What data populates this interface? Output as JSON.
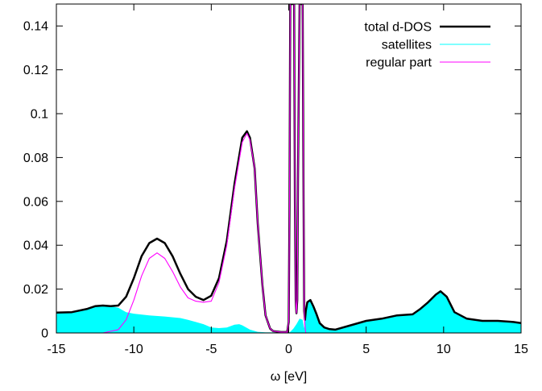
{
  "chart_data": {
    "type": "area",
    "title": "",
    "xlabel": "ω [eV]",
    "ylabel": "",
    "xlim": [
      -15,
      15
    ],
    "ylim": [
      0,
      0.15
    ],
    "xticks": [
      -15,
      -10,
      -5,
      0,
      5,
      10,
      15
    ],
    "xtick_labels": [
      "-15",
      "-10",
      "-5",
      "0",
      "5",
      "10",
      "15"
    ],
    "yticks": [
      0,
      0.02,
      0.04,
      0.06,
      0.08,
      0.1,
      0.12,
      0.14
    ],
    "ytick_labels": [
      "0",
      "0.02",
      "0.04",
      "0.06",
      "0.08",
      "0.1",
      "0.12",
      "0.14"
    ],
    "grid": false,
    "legend_position": "top-right",
    "series": [
      {
        "name": "satellites",
        "color": "#00ffff",
        "style": "filled-area",
        "x": [
          -15,
          -14,
          -13,
          -12.5,
          -12,
          -11.5,
          -11,
          -10.5,
          -10,
          -9,
          -8,
          -7,
          -6.5,
          -6,
          -5.5,
          -5,
          -4.5,
          -4,
          -3.5,
          -3.2,
          -3,
          -2.5,
          -2,
          -1.5,
          -1,
          -0.5,
          0,
          0.1,
          0.3,
          0.5,
          0.7,
          0.9,
          1.0,
          1.1,
          1.2,
          1.4,
          1.6,
          1.8,
          2,
          2.3,
          2.6,
          3,
          4,
          5,
          6,
          7,
          8,
          8.5,
          9,
          9.5,
          9.8,
          10.2,
          10.7,
          11.5,
          12.5,
          13.5,
          14.5,
          15
        ],
        "y": [
          0.0093,
          0.0095,
          0.011,
          0.0122,
          0.0125,
          0.0122,
          0.0115,
          0.0095,
          0.0088,
          0.008,
          0.0075,
          0.0068,
          0.006,
          0.005,
          0.004,
          0.0025,
          0.0022,
          0.0025,
          0.0038,
          0.004,
          0.0035,
          0.0015,
          0.0005,
          0.0003,
          0.0003,
          0.0002,
          0.0002,
          0.0005,
          0.002,
          0.004,
          0.0065,
          0.006,
          0.002,
          0.01,
          0.014,
          0.015,
          0.012,
          0.0085,
          0.0045,
          0.0025,
          0.0018,
          0.0015,
          0.0035,
          0.0055,
          0.0065,
          0.008,
          0.0085,
          0.011,
          0.014,
          0.0175,
          0.019,
          0.0165,
          0.0095,
          0.0065,
          0.0055,
          0.0055,
          0.005,
          0.0045
        ]
      },
      {
        "name": "total d-DOS",
        "color": "#000000",
        "style": "thick-line",
        "x": [
          -15,
          -14,
          -13,
          -12.5,
          -12,
          -11.5,
          -11,
          -10.5,
          -10,
          -9.5,
          -9,
          -8.5,
          -8,
          -7.5,
          -7,
          -6.5,
          -6,
          -5.5,
          -5,
          -4.5,
          -4,
          -3.5,
          -3,
          -2.7,
          -2.5,
          -2.2,
          -2,
          -1.7,
          -1.5,
          -1.2,
          -1,
          -0.5,
          -0.1,
          0,
          0.05,
          0.1,
          0.15,
          0.25,
          0.35,
          0.4,
          0.45,
          0.5,
          0.55,
          0.6,
          0.7,
          0.8,
          0.9,
          0.95,
          1.0,
          1.05,
          1.1,
          1.2,
          1.4,
          1.6,
          1.8,
          2,
          2.3,
          2.6,
          3,
          4,
          5,
          6,
          7,
          8,
          8.5,
          9,
          9.5,
          9.8,
          10.2,
          10.7,
          11.5,
          12.5,
          13.5,
          14.5,
          15
        ],
        "y": [
          0.0093,
          0.0095,
          0.011,
          0.0122,
          0.0125,
          0.0122,
          0.0125,
          0.0165,
          0.025,
          0.035,
          0.041,
          0.043,
          0.041,
          0.035,
          0.027,
          0.02,
          0.0165,
          0.015,
          0.017,
          0.025,
          0.042,
          0.068,
          0.089,
          0.092,
          0.089,
          0.075,
          0.05,
          0.022,
          0.008,
          0.002,
          0.0008,
          0.0004,
          0.0004,
          0.005,
          0.06,
          0.15,
          0.15,
          0.15,
          0.15,
          0.06,
          0.015,
          0.009,
          0.015,
          0.07,
          0.15,
          0.15,
          0.15,
          0.07,
          0.01,
          0.006,
          0.01,
          0.014,
          0.015,
          0.012,
          0.0085,
          0.0045,
          0.0025,
          0.0018,
          0.0015,
          0.0035,
          0.0055,
          0.0065,
          0.008,
          0.0085,
          0.011,
          0.014,
          0.0175,
          0.019,
          0.0165,
          0.0095,
          0.0065,
          0.0055,
          0.0055,
          0.005,
          0.0045
        ]
      },
      {
        "name": "regular part",
        "color": "#ff00ff",
        "style": "thin-line",
        "x": [
          -12,
          -11,
          -10.5,
          -10,
          -9.5,
          -9,
          -8.5,
          -8,
          -7.5,
          -7,
          -6.5,
          -6,
          -5.5,
          -5,
          -4.5,
          -4,
          -3.5,
          -3,
          -2.7,
          -2.5,
          -2.2,
          -2,
          -1.7,
          -1.5,
          -1.2,
          -1,
          -0.5,
          -0.1,
          0,
          0.05,
          0.1,
          0.15,
          0.25,
          0.35,
          0.4,
          0.45,
          0.5,
          0.55,
          0.6,
          0.7,
          0.8,
          0.9,
          0.95,
          1.0,
          1.05,
          1.1
        ],
        "y": [
          0,
          0.0015,
          0.006,
          0.015,
          0.026,
          0.034,
          0.0365,
          0.034,
          0.028,
          0.021,
          0.016,
          0.0145,
          0.014,
          0.0145,
          0.023,
          0.04,
          0.066,
          0.087,
          0.091,
          0.088,
          0.075,
          0.05,
          0.022,
          0.008,
          0.002,
          0.0008,
          0.0004,
          0.0004,
          0.005,
          0.06,
          0.15,
          0.15,
          0.15,
          0.15,
          0.06,
          0.015,
          0.009,
          0.015,
          0.07,
          0.15,
          0.15,
          0.15,
          0.07,
          0.01,
          0.003,
          0
        ]
      }
    ],
    "legend": [
      {
        "label": "total d-DOS",
        "color": "#000000"
      },
      {
        "label": "satellites",
        "color": "#00ffff"
      },
      {
        "label": "regular part",
        "color": "#ff00ff"
      }
    ]
  }
}
